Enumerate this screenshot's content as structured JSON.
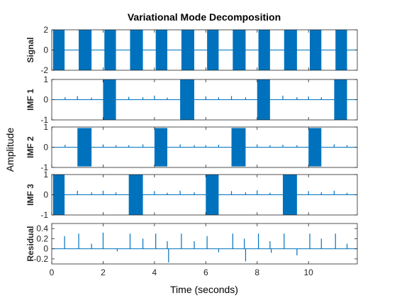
{
  "chart_data": {
    "type": "line",
    "title": "Variational Mode Decomposition",
    "xlabel": "Time (seconds)",
    "ylabel": "Amplitude",
    "xlim": [
      0,
      11.9
    ],
    "x_ticks": [
      0,
      2,
      4,
      6,
      8,
      10
    ],
    "x_tick_labels": [
      "0",
      "2",
      "4",
      "6",
      "8",
      "10"
    ],
    "line_color": "#0072BD",
    "grid": false,
    "panels": [
      {
        "name": "Signal",
        "ylim": [
          -2,
          2
        ],
        "y_ticks": [
          -2,
          0,
          2
        ],
        "y_tick_labels": [
          "-2",
          "0",
          "2"
        ],
        "burst_amplitude": 2,
        "bursts": [
          [
            0.05,
            0.5
          ],
          [
            1.05,
            1.55
          ],
          [
            2.05,
            2.5
          ],
          [
            3.05,
            3.55
          ],
          [
            4.05,
            4.5
          ],
          [
            5.05,
            5.55
          ],
          [
            6.05,
            6.5
          ],
          [
            7.05,
            7.55
          ],
          [
            8.05,
            8.5
          ],
          [
            9.05,
            9.55
          ],
          [
            10.05,
            10.5
          ],
          [
            11.05,
            11.5
          ]
        ],
        "spikes": []
      },
      {
        "name": "IMF 1",
        "ylim": [
          -1,
          1
        ],
        "y_ticks": [
          -1,
          0,
          1
        ],
        "y_tick_labels": [
          "-1",
          "0",
          "1"
        ],
        "burst_amplitude": 1,
        "bursts": [
          [
            2.0,
            2.5
          ],
          [
            5.0,
            5.55
          ],
          [
            8.0,
            8.5
          ],
          [
            11.0,
            11.5
          ]
        ],
        "spikes": [
          [
            0.52,
            0.12
          ],
          [
            1.0,
            0.18
          ],
          [
            1.55,
            0.1
          ],
          [
            3.0,
            0.14
          ],
          [
            3.55,
            0.12
          ],
          [
            4.0,
            0.2
          ],
          [
            4.5,
            0.1
          ],
          [
            6.0,
            0.16
          ],
          [
            6.5,
            0.12
          ],
          [
            7.0,
            0.18
          ],
          [
            7.55,
            0.12
          ],
          [
            9.0,
            0.2
          ],
          [
            9.55,
            0.12
          ],
          [
            10.0,
            0.16
          ],
          [
            10.5,
            0.12
          ]
        ]
      },
      {
        "name": "IMF 2",
        "ylim": [
          -1,
          1
        ],
        "y_ticks": [
          -1,
          0,
          1
        ],
        "y_tick_labels": [
          "-1",
          "0",
          "1"
        ],
        "burst_amplitude": 0.95,
        "bursts": [
          [
            1.0,
            1.55
          ],
          [
            4.0,
            4.5
          ],
          [
            7.0,
            7.55
          ],
          [
            10.0,
            10.5
          ]
        ],
        "spikes": [
          [
            0.52,
            0.12
          ],
          [
            2.0,
            0.14
          ],
          [
            2.5,
            0.1
          ],
          [
            3.0,
            0.1
          ],
          [
            3.55,
            0.14
          ],
          [
            5.0,
            0.14
          ],
          [
            5.55,
            0.1
          ],
          [
            6.0,
            0.1
          ],
          [
            6.5,
            0.12
          ],
          [
            8.0,
            0.14
          ],
          [
            8.5,
            0.1
          ],
          [
            9.0,
            0.12
          ],
          [
            9.55,
            0.1
          ],
          [
            11.0,
            0.14
          ],
          [
            11.5,
            0.1
          ]
        ]
      },
      {
        "name": "IMF 3",
        "ylim": [
          -1,
          1
        ],
        "y_ticks": [
          -1,
          0,
          1
        ],
        "y_tick_labels": [
          "-1",
          "0",
          "1"
        ],
        "burst_amplitude": 1,
        "bursts": [
          [
            0.05,
            0.5
          ],
          [
            3.0,
            3.55
          ],
          [
            6.0,
            6.5
          ],
          [
            9.0,
            9.55
          ]
        ],
        "spikes": [
          [
            1.0,
            0.2
          ],
          [
            1.55,
            0.12
          ],
          [
            2.0,
            0.2
          ],
          [
            2.5,
            0.12
          ],
          [
            4.0,
            0.18
          ],
          [
            4.5,
            0.1
          ],
          [
            5.0,
            0.2
          ],
          [
            5.55,
            0.12
          ],
          [
            7.0,
            0.18
          ],
          [
            7.55,
            0.12
          ],
          [
            8.0,
            0.22
          ],
          [
            8.5,
            0.1
          ],
          [
            10.0,
            0.18
          ],
          [
            10.5,
            0.12
          ],
          [
            11.0,
            0.2
          ],
          [
            11.5,
            0.1
          ]
        ]
      },
      {
        "name": "Residual",
        "ylim": [
          -0.3,
          0.5
        ],
        "y_ticks": [
          -0.2,
          0,
          0.2,
          0.4
        ],
        "y_tick_labels": [
          "-0.2",
          "0",
          "0.2",
          "0.4"
        ],
        "burst_amplitude": 0,
        "bursts": [],
        "spikes": [
          [
            0.5,
            0.25
          ],
          [
            1.05,
            0.3
          ],
          [
            1.55,
            0.1
          ],
          [
            2.0,
            0.32
          ],
          [
            2.55,
            -0.05
          ],
          [
            3.05,
            0.3
          ],
          [
            3.55,
            0.2
          ],
          [
            4.05,
            0.3
          ],
          [
            4.5,
            0.15
          ],
          [
            4.55,
            -0.27
          ],
          [
            5.05,
            0.3
          ],
          [
            5.55,
            0.15
          ],
          [
            6.05,
            0.25
          ],
          [
            6.5,
            -0.07
          ],
          [
            7.05,
            0.3
          ],
          [
            7.5,
            0.2
          ],
          [
            7.55,
            -0.25
          ],
          [
            8.05,
            0.3
          ],
          [
            8.5,
            0.15
          ],
          [
            8.55,
            -0.08
          ],
          [
            9.05,
            0.3
          ],
          [
            9.55,
            -0.13
          ],
          [
            10.05,
            0.3
          ],
          [
            10.5,
            0.2
          ],
          [
            11.05,
            0.3
          ],
          [
            11.5,
            0.1
          ]
        ]
      }
    ]
  }
}
